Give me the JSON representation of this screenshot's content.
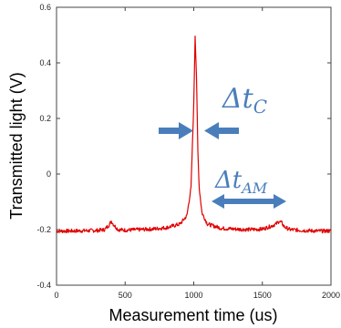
{
  "chart_data": {
    "type": "line",
    "title": "",
    "xlabel": "Measurement time (us)",
    "ylabel": "Transmitted light (V)",
    "xlim": [
      0,
      2000
    ],
    "ylim": [
      -0.4,
      0.6
    ],
    "x_ticks": [
      "0",
      "500",
      "1000",
      "1500",
      "2000"
    ],
    "y_ticks": [
      "-0.4",
      "-0.2",
      "0",
      "0.2",
      "0.4",
      "0.6"
    ],
    "grid": false,
    "legend": "none",
    "series": [
      {
        "color": "#e00000",
        "x": [
          0,
          100,
          200,
          300,
          350,
          380,
          400,
          420,
          450,
          500,
          600,
          700,
          800,
          900,
          950,
          980,
          1000,
          1010,
          1020,
          1030,
          1040,
          1060,
          1100,
          1200,
          1300,
          1400,
          1500,
          1550,
          1600,
          1620,
          1640,
          1660,
          1700,
          1800,
          1900,
          2000
        ],
        "y": [
          -0.205,
          -0.205,
          -0.204,
          -0.203,
          -0.2,
          -0.185,
          -0.17,
          -0.185,
          -0.2,
          -0.202,
          -0.2,
          -0.198,
          -0.193,
          -0.18,
          -0.15,
          -0.05,
          0.25,
          0.5,
          0.35,
          0.08,
          -0.05,
          -0.14,
          -0.18,
          -0.195,
          -0.198,
          -0.2,
          -0.198,
          -0.19,
          -0.18,
          -0.17,
          -0.175,
          -0.19,
          -0.2,
          -0.203,
          -0.205,
          -0.205
        ]
      }
    ],
    "annotations": [
      {
        "base": "Δt",
        "sub": "C",
        "marker": "arrows-pointing-inward"
      },
      {
        "base": "Δt",
        "sub": "AM",
        "marker": "double-headed-arrow"
      }
    ]
  },
  "colors": {
    "series": "#e00000",
    "annotation": "#4a7ebb"
  }
}
